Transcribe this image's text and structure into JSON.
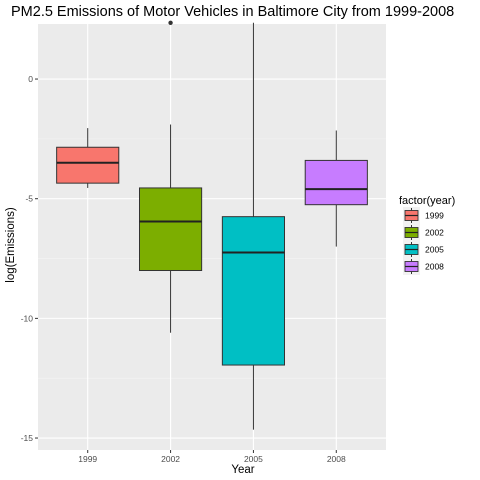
{
  "chart_data": {
    "type": "boxplot",
    "title": "PM2.5 Emissions of Motor Vehicles in Baltimore City from 1999-2008",
    "xlabel": "Year",
    "ylabel": "log(Emissions)",
    "categories": [
      "1999",
      "2002",
      "2005",
      "2008"
    ],
    "ylim": [
      -15.5,
      2.3
    ],
    "yticks": [
      0,
      -5,
      -10,
      -15
    ],
    "ytick_labels": [
      "0",
      "-5",
      "-10",
      "-15"
    ],
    "grid": true,
    "legend": {
      "title": "factor(year)",
      "position": "right",
      "entries": [
        "1999",
        "2002",
        "2005",
        "2008"
      ]
    },
    "boxes": [
      {
        "category": "1999",
        "min": -4.55,
        "q1": -4.35,
        "median": -3.5,
        "q3": -2.85,
        "max": -2.05,
        "outliers": [],
        "color": "#F8766D"
      },
      {
        "category": "2002",
        "min": -10.6,
        "q1": -8.0,
        "median": -5.95,
        "q3": -4.55,
        "max": -1.9,
        "outliers": [
          2.35
        ],
        "color": "#7CAE00"
      },
      {
        "category": "2005",
        "min": -14.65,
        "q1": -11.95,
        "median": -7.25,
        "q3": -5.75,
        "max": 2.35,
        "outliers": [],
        "color": "#00BFC4"
      },
      {
        "category": "2008",
        "min": -7.0,
        "q1": -5.25,
        "median": -4.6,
        "q3": -3.4,
        "max": -2.15,
        "outliers": [],
        "color": "#C77CFF"
      }
    ]
  }
}
